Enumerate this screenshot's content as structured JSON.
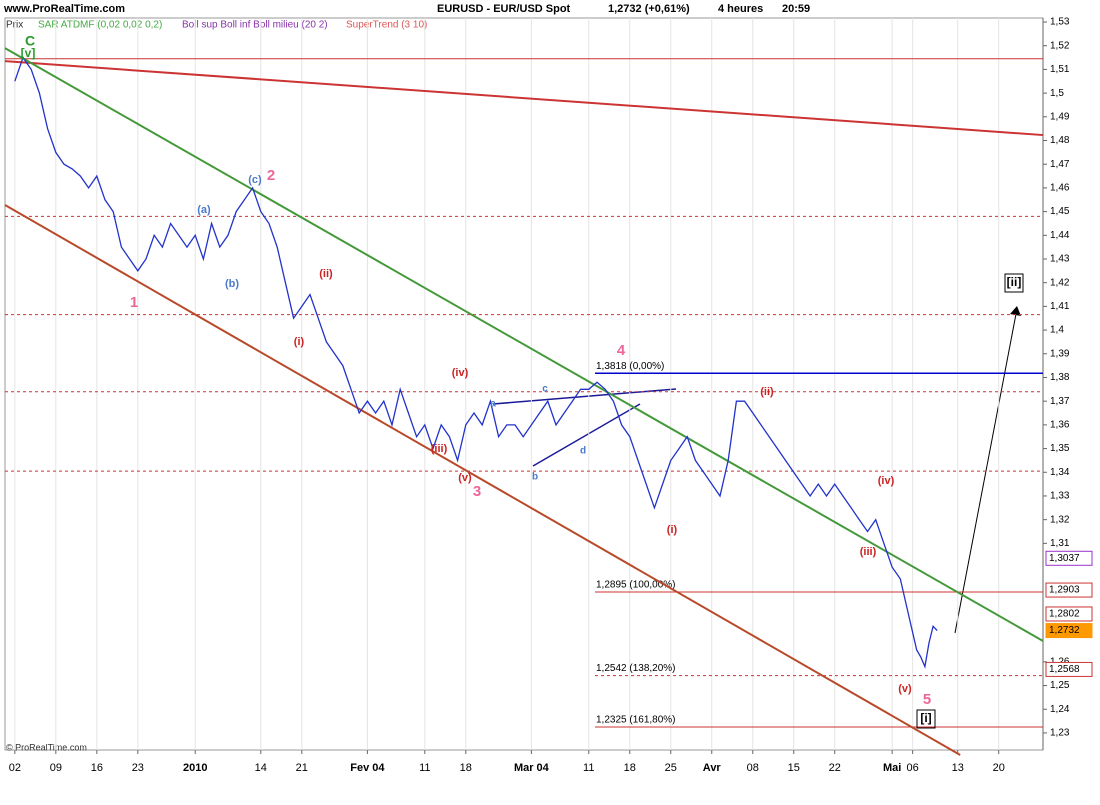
{
  "header": {
    "site": "www.ProRealTime.com",
    "instrument": "EURUSD - EUR/USD Spot",
    "quote": "1,2732 (+0,61%)",
    "period": "4 heures",
    "time": "20:59"
  },
  "legend": {
    "panel": "Prix",
    "sar": "SAR ATDMF (0,02 0,02 0,2)",
    "boll": "Boll sup Boll inf Boll milieu (20 2)",
    "supertrend": "SuperTrend (3 10)"
  },
  "footer": "© ProRealTime.com",
  "chart_data": {
    "type": "line",
    "xlim": [
      -1.2,
      125.4
    ],
    "ylim": [
      1.2228,
      1.5317
    ],
    "xticks": [
      {
        "value": 0,
        "label": "02"
      },
      {
        "value": 5,
        "label": "09"
      },
      {
        "value": 10,
        "label": "16"
      },
      {
        "value": 15,
        "label": "23"
      },
      {
        "value": 22,
        "label": "2010"
      },
      {
        "value": 30,
        "label": "14"
      },
      {
        "value": 35,
        "label": "21"
      },
      {
        "value": 43,
        "label": "Fev 04"
      },
      {
        "value": 50,
        "label": "11"
      },
      {
        "value": 55,
        "label": "18"
      },
      {
        "value": 63,
        "label": "Mar 04"
      },
      {
        "value": 70,
        "label": "11"
      },
      {
        "value": 75,
        "label": "18"
      },
      {
        "value": 80,
        "label": "25"
      },
      {
        "value": 85,
        "label": "Avr"
      },
      {
        "value": 90,
        "label": "08"
      },
      {
        "value": 95,
        "label": "15"
      },
      {
        "value": 100,
        "label": "22"
      },
      {
        "value": 107,
        "label": "Mai"
      },
      {
        "value": 109.5,
        "label": "06"
      },
      {
        "value": 115,
        "label": "13"
      },
      {
        "value": 120,
        "label": "20"
      }
    ],
    "yticks": [
      {
        "value": 1.53,
        "label": "1,53"
      },
      {
        "value": 1.52,
        "label": "1,52"
      },
      {
        "value": 1.51,
        "label": "1,51"
      },
      {
        "value": 1.5,
        "label": "1,5"
      },
      {
        "value": 1.49,
        "label": "1,49"
      },
      {
        "value": 1.48,
        "label": "1,48"
      },
      {
        "value": 1.47,
        "label": "1,47"
      },
      {
        "value": 1.46,
        "label": "1,46"
      },
      {
        "value": 1.45,
        "label": "1,45"
      },
      {
        "value": 1.44,
        "label": "1,44"
      },
      {
        "value": 1.43,
        "label": "1,43"
      },
      {
        "value": 1.42,
        "label": "1,42"
      },
      {
        "value": 1.41,
        "label": "1,41"
      },
      {
        "value": 1.4,
        "label": "1,4"
      },
      {
        "value": 1.39,
        "label": "1,39"
      },
      {
        "value": 1.38,
        "label": "1,38"
      },
      {
        "value": 1.37,
        "label": "1,37"
      },
      {
        "value": 1.36,
        "label": "1,36"
      },
      {
        "value": 1.35,
        "label": "1,35"
      },
      {
        "value": 1.34,
        "label": "1,34"
      },
      {
        "value": 1.33,
        "label": "1,33"
      },
      {
        "value": 1.32,
        "label": "1,32"
      },
      {
        "value": 1.31,
        "label": "1,31"
      },
      {
        "value": 1.26,
        "label": "1,26"
      },
      {
        "value": 1.25,
        "label": "1,25"
      },
      {
        "value": 1.24,
        "label": "1,24"
      },
      {
        "value": 1.23,
        "label": "1,23"
      }
    ],
    "series": [
      {
        "color": "#2233cc",
        "x": [
          0,
          1,
          2,
          3,
          4,
          5,
          6,
          7,
          8,
          9,
          10,
          11,
          12,
          13,
          14,
          15,
          16,
          17,
          18,
          19,
          20,
          21,
          22,
          23,
          24,
          25,
          26,
          27,
          28,
          29,
          30,
          31,
          32,
          33,
          34,
          35,
          36,
          37,
          38,
          39,
          40,
          41,
          42,
          43,
          44,
          45,
          46,
          47,
          48,
          49,
          50,
          51,
          52,
          53,
          54,
          55,
          56,
          57,
          58,
          59,
          60,
          61,
          62,
          63,
          64,
          65,
          66,
          67,
          68,
          69,
          70,
          71,
          72,
          73,
          74,
          75,
          76,
          77,
          78,
          79,
          80,
          81,
          82,
          83,
          84,
          85,
          86,
          87,
          88,
          89,
          90,
          91,
          92,
          93,
          94,
          95,
          96,
          97,
          98,
          99,
          100,
          101,
          102,
          103,
          104,
          105,
          106,
          107,
          108,
          109,
          110,
          110.5,
          111,
          111.5,
          112,
          112.5
        ],
        "values": [
          1.505,
          1.515,
          1.51,
          1.5,
          1.485,
          1.475,
          1.47,
          1.468,
          1.465,
          1.46,
          1.465,
          1.455,
          1.45,
          1.435,
          1.43,
          1.425,
          1.43,
          1.44,
          1.435,
          1.445,
          1.44,
          1.435,
          1.44,
          1.43,
          1.445,
          1.435,
          1.44,
          1.45,
          1.455,
          1.46,
          1.45,
          1.445,
          1.435,
          1.42,
          1.405,
          1.41,
          1.415,
          1.405,
          1.395,
          1.39,
          1.385,
          1.375,
          1.365,
          1.37,
          1.365,
          1.37,
          1.36,
          1.375,
          1.365,
          1.355,
          1.36,
          1.35,
          1.36,
          1.355,
          1.345,
          1.36,
          1.365,
          1.36,
          1.37,
          1.355,
          1.36,
          1.36,
          1.355,
          1.36,
          1.365,
          1.37,
          1.36,
          1.365,
          1.37,
          1.375,
          1.375,
          1.378,
          1.375,
          1.37,
          1.36,
          1.355,
          1.345,
          1.335,
          1.325,
          1.335,
          1.345,
          1.35,
          1.355,
          1.345,
          1.34,
          1.335,
          1.33,
          1.345,
          1.37,
          1.37,
          1.365,
          1.36,
          1.355,
          1.35,
          1.345,
          1.34,
          1.335,
          1.33,
          1.335,
          1.33,
          1.335,
          1.33,
          1.325,
          1.32,
          1.315,
          1.32,
          1.31,
          1.3,
          1.295,
          1.28,
          1.265,
          1.262,
          1.258,
          1.268,
          1.275,
          1.2732
        ]
      }
    ],
    "trendlines": [
      {
        "color": "#cc3333",
        "x": [
          -1.2,
          125.4
        ],
        "y": [
          1.5135,
          1.4823
        ]
      },
      {
        "color": "#44993a",
        "x": [
          -1.2,
          125.4
        ],
        "y": [
          1.519,
          1.2688
        ]
      },
      {
        "color": "#b84a2a",
        "x": [
          -1.2,
          115.3
        ],
        "y": [
          1.4528,
          1.2207
        ]
      }
    ],
    "hlines": [
      {
        "value": 1.5145,
        "color": "#cc3333",
        "dashed": false
      },
      {
        "value": 1.448,
        "color": "#cc3333",
        "dashed": true
      },
      {
        "value": 1.4065,
        "color": "#cc3333",
        "dashed": true
      },
      {
        "value": 1.374,
        "color": "#cc3333",
        "dashed": true
      },
      {
        "value": 1.3405,
        "color": "#cc3333",
        "dashed": true
      }
    ],
    "levels": [
      {
        "value": 1.3818,
        "label": "1,3818 (0,00%)",
        "color": "#0000cc",
        "dashed": false
      },
      {
        "value": 1.2895,
        "label": "1,2895 (100,00%)",
        "color": "#cc3333",
        "dashed": false
      },
      {
        "value": 1.2542,
        "label": "1,2542 (138,20%)",
        "color": "#cc3333",
        "dashed": true
      },
      {
        "value": 1.2325,
        "label": "1,2325 (161,80%)",
        "color": "#cc3333",
        "dashed": false
      }
    ],
    "price_labels": [
      {
        "value": 1.3037,
        "label": "1,3037",
        "color": "#9933cc"
      },
      {
        "value": 1.2903,
        "label": "1,2903",
        "color": "#cc3333"
      },
      {
        "value": 1.2802,
        "label": "1,2802",
        "color": "#cc3333"
      },
      {
        "value": 1.2732,
        "label": "1,2732",
        "color": "#ff9900"
      },
      {
        "value": 1.2568,
        "label": "1,2568",
        "color": "#cc3333"
      }
    ],
    "annotations": [
      "C",
      "[v]",
      "(c)",
      "2",
      "(a)",
      "(b)",
      "1",
      "(ii)",
      "(i)",
      "(iv)",
      "(iii)",
      "(v)",
      "3",
      "a",
      "c",
      "b",
      "d",
      "4",
      "(i)",
      "(ii)",
      "(iv)",
      "(iii)",
      "(v)",
      "5",
      "[i]",
      "[ii]"
    ]
  }
}
